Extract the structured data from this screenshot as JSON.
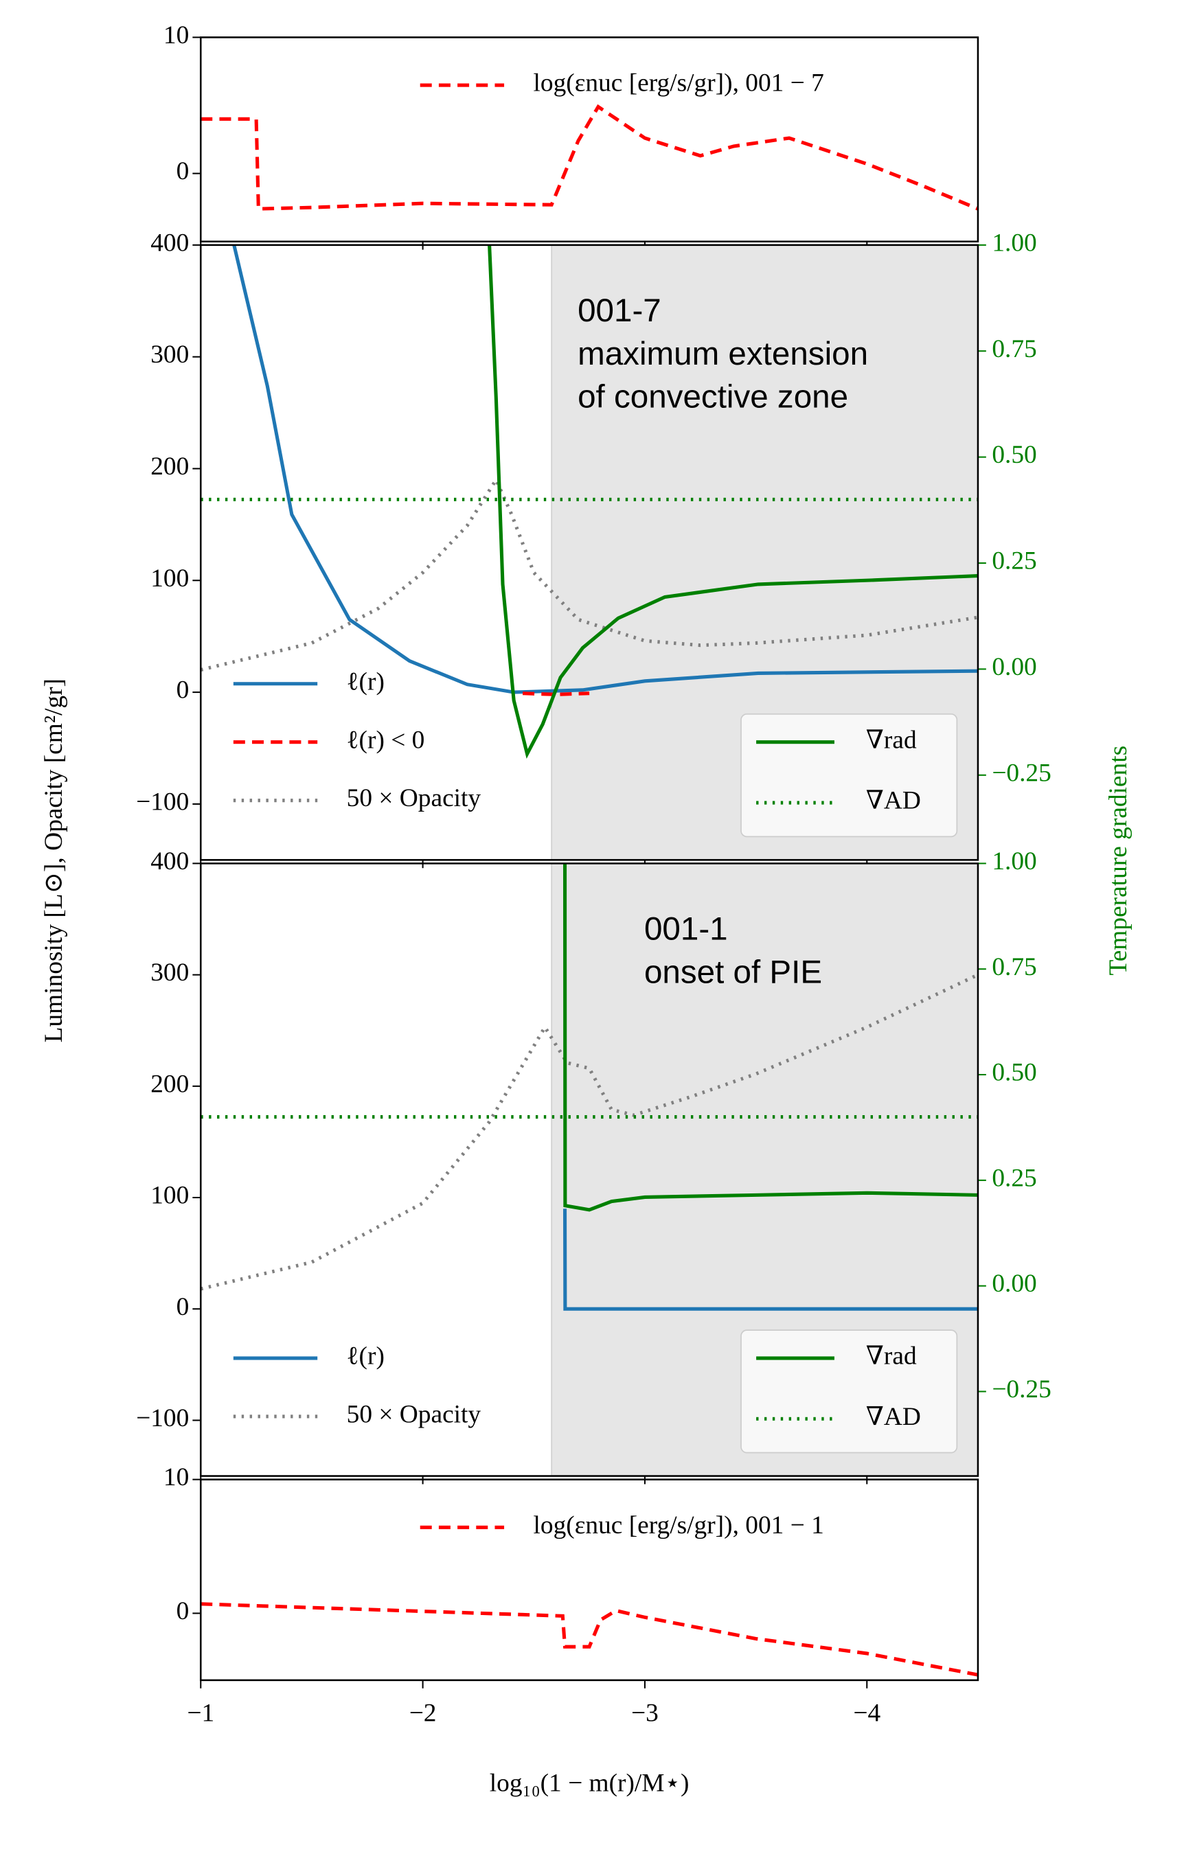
{
  "chart_data": [
    {
      "type": "line",
      "xlim": [
        -1,
        -4.5
      ],
      "ylim": [
        -5,
        10
      ],
      "yticks": [
        0,
        10
      ],
      "legend": "upper right",
      "series": [
        {
          "name": "log(εnuc [erg/s/gr]), 001 − 7",
          "color": "#ff0000",
          "style": "dashed",
          "x": [
            -1,
            -1.25,
            -1.26,
            -1.5,
            -2,
            -2.58,
            -2.7,
            -2.79,
            -3,
            -3.25,
            -3.4,
            -3.65,
            -4,
            -4.25,
            -4.5
          ],
          "values": [
            4,
            4,
            -2.6,
            -2.5,
            -2.2,
            -2.3,
            2.4,
            4.9,
            2.6,
            1.3,
            2.0,
            2.6,
            0.7,
            -0.9,
            -2.6
          ]
        }
      ]
    },
    {
      "type": "line",
      "xlim": [
        -1,
        -4.5
      ],
      "ylim": [
        -150,
        400
      ],
      "yticks": [
        {
          "value": -100,
          "label": "−100"
        },
        0,
        100,
        200,
        300,
        400
      ],
      "y2lim": [
        -0.45,
        1.0
      ],
      "y2ticks": [
        {
          "value": -0.25,
          "label": "−0.25"
        },
        {
          "value": 0,
          "label": "0.00"
        },
        {
          "value": 0.25,
          "label": "0.25"
        },
        {
          "value": 0.5,
          "label": "0.50"
        },
        {
          "value": 0.75,
          "label": "0.75"
        },
        {
          "value": 1,
          "label": "1.00"
        }
      ],
      "ylabel": "Luminosity [L⊙], Opacity [cm²/gr]",
      "y2label": "Temperature gradients",
      "annotation": [
        "001-7",
        "maximum extension",
        "of convective zone"
      ],
      "shaded_xrange": [
        -2.58,
        -4.5
      ],
      "legend": "lower left",
      "legend2": "lower right",
      "series": [
        {
          "name": "ℓ(r)",
          "color": "#1f77b4",
          "style": "solid",
          "x": [
            -1.15,
            -1.3,
            -1.41,
            -1.67,
            -1.94,
            -2.2,
            -2.41,
            -2.72,
            -3,
            -3.51,
            -4.5
          ],
          "values": [
            400,
            274,
            159,
            65,
            28,
            7,
            0,
            2,
            10,
            17,
            19
          ]
        },
        {
          "name": "ℓ(r) < 0",
          "color": "#ff0000",
          "style": "dashed",
          "x": [
            -2.45,
            -2.6,
            -2.75
          ],
          "values": [
            -1,
            -2,
            -1
          ]
        },
        {
          "name": "50 × Opacity",
          "color": "#808080",
          "style": "dotted",
          "x": [
            -1,
            -1.5,
            -1.8,
            -2,
            -2.2,
            -2.33,
            -2.4,
            -2.5,
            -2.7,
            -3,
            -3.25,
            -3.5,
            -4,
            -4.5
          ],
          "values": [
            20,
            44,
            75,
            107,
            149,
            190,
            159,
            107,
            65,
            46,
            42,
            44,
            51,
            67
          ]
        },
        {
          "name": "∇rad",
          "color": "#008000",
          "style": "solid",
          "axis": "y2",
          "x": [
            -2.3,
            -2.33,
            -2.36,
            -2.41,
            -2.47,
            -2.54,
            -2.62,
            -2.72,
            -2.88,
            -3.09,
            -3.51,
            -4.04,
            -4.5
          ],
          "values": [
            1.0,
            0.64,
            0.2,
            -0.074,
            -0.2,
            -0.13,
            -0.02,
            0.05,
            0.12,
            0.17,
            0.2,
            0.21,
            0.22
          ]
        },
        {
          "name": "∇AD",
          "color": "#008000",
          "style": "dotted",
          "axis": "y2",
          "x": [
            -1,
            -4.5
          ],
          "values": [
            0.4,
            0.4
          ]
        }
      ]
    },
    {
      "type": "line",
      "xlim": [
        -1,
        -4.5
      ],
      "ylim": [
        -150,
        400
      ],
      "yticks": [
        {
          "value": -100,
          "label": "−100"
        },
        0,
        100,
        200,
        300,
        400
      ],
      "y2lim": [
        -0.45,
        1.0
      ],
      "y2ticks": [
        {
          "value": -0.25,
          "label": "−0.25"
        },
        {
          "value": 0,
          "label": "0.00"
        },
        {
          "value": 0.25,
          "label": "0.25"
        },
        {
          "value": 0.5,
          "label": "0.50"
        },
        {
          "value": 0.75,
          "label": "0.75"
        },
        {
          "value": 1,
          "label": "1.00"
        }
      ],
      "annotation": [
        "001-1",
        "onset of PIE"
      ],
      "shaded_xrange": [
        -2.58,
        -4.5
      ],
      "legend": "lower left",
      "legend2": "lower right",
      "series": [
        {
          "name": "ℓ(r)",
          "color": "#1f77b4",
          "style": "solid",
          "x": [
            -2.64,
            -2.641,
            -4.5
          ],
          "values": [
            90,
            0,
            0
          ]
        },
        {
          "name": "50 × Opacity",
          "color": "#808080",
          "style": "dotted",
          "x": [
            -1,
            -1.5,
            -2,
            -2.3,
            -2.55,
            -2.65,
            -2.75,
            -2.85,
            -2.95,
            -3.2,
            -3.5,
            -4,
            -4.5
          ],
          "values": [
            18,
            42,
            95,
            168,
            253,
            221,
            216,
            179,
            174,
            190,
            211,
            253,
            300
          ]
        },
        {
          "name": "∇rad",
          "color": "#008000",
          "style": "solid",
          "axis": "y2",
          "x": [
            -2.64,
            -2.641,
            -2.75,
            -2.85,
            -3,
            -3.5,
            -4,
            -4.5
          ],
          "values": [
            1.0,
            0.19,
            0.18,
            0.2,
            0.21,
            0.215,
            0.22,
            0.215
          ]
        },
        {
          "name": "∇AD",
          "color": "#008000",
          "style": "dotted",
          "axis": "y2",
          "x": [
            -1,
            -4.5
          ],
          "values": [
            0.4,
            0.4
          ]
        }
      ]
    },
    {
      "type": "line",
      "xlim": [
        -1,
        -4.5
      ],
      "ylim": [
        -5,
        10
      ],
      "yticks": [
        0,
        10
      ],
      "legend": "upper right",
      "xticks": [
        {
          "value": -1,
          "label": "−1"
        },
        {
          "value": -2,
          "label": "−2"
        },
        {
          "value": -3,
          "label": "−3"
        },
        {
          "value": -4,
          "label": "−4"
        }
      ],
      "xlabel": "log₁₀(1 − m(r)/M⋆)",
      "series": [
        {
          "name": "log(εnuc [erg/s/gr]), 001 − 1",
          "color": "#ff0000",
          "style": "dashed",
          "x": [
            -1,
            -2.63,
            -2.64,
            -2.75,
            -2.8,
            -2.87,
            -3,
            -3.5,
            -4,
            -4.5
          ],
          "values": [
            0.7,
            -0.2,
            -2.5,
            -2.5,
            -0.5,
            0.2,
            -0.3,
            -1.9,
            -3,
            -4.6
          ]
        }
      ]
    }
  ]
}
